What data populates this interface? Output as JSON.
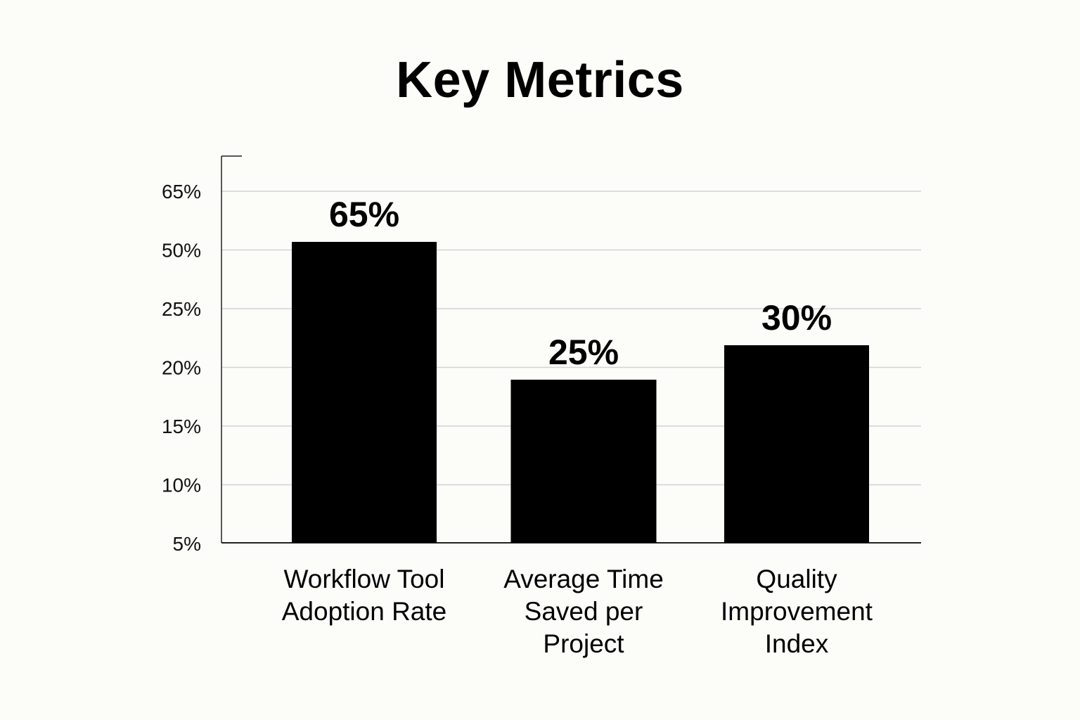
{
  "chart_data": {
    "type": "bar",
    "title": "Key Metrics",
    "xlabel": "",
    "ylabel": "",
    "categories": [
      [
        "Workflow Tool",
        "Adoption Rate"
      ],
      [
        "Average Time",
        "Saved per",
        "Project"
      ],
      [
        "Quality",
        "Improvement",
        "Index"
      ]
    ],
    "values": [
      65,
      25,
      30
    ],
    "value_labels": [
      "65%",
      "25%",
      "30%"
    ],
    "y_tick_labels": [
      "65%",
      "50%",
      "25%",
      "20%",
      "15%",
      "10%",
      "5%"
    ],
    "grid": true,
    "legend": "none",
    "colors": {
      "bar": "#000000",
      "grid": "#cfd3da",
      "axis": "#222222",
      "background": "#fcfcf9"
    }
  }
}
